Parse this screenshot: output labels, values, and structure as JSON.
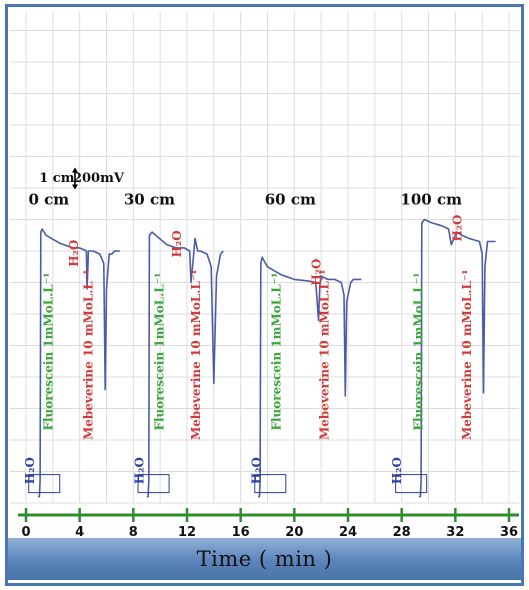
{
  "chart_data": {
    "type": "line",
    "title": "",
    "xlabel": "Time ( min )",
    "ylabel": "",
    "xlim": [
      0,
      36
    ],
    "x_ticks": [
      0,
      4,
      8,
      12,
      16,
      20,
      24,
      28,
      32,
      36
    ],
    "scale_bar": {
      "length": "1 cm",
      "value": "200mV"
    },
    "grid": true,
    "colors": {
      "trace": "#4a5ba8",
      "fluorescein": "#3aa53a",
      "mebeverine": "#d23a3a",
      "water": "#2b3fa0",
      "axis": "#2e8b2e",
      "frame": "#4a76b3"
    },
    "series": [
      {
        "name": "0 cm",
        "x": [
          0.9,
          1.0,
          1.05,
          1.1,
          1.2,
          1.5,
          2.5,
          3.5,
          4.0,
          4.5,
          4.55,
          4.6,
          4.65,
          4.7,
          5.0,
          5.5,
          5.8,
          5.9,
          6.0,
          6.2,
          6.4,
          6.6,
          6.8,
          7.0
        ],
        "y": [
          0.2,
          0.2,
          0.7,
          8.6,
          8.7,
          8.5,
          8.25,
          8.1,
          8.1,
          8.0,
          6.8,
          7.3,
          8.0,
          8.0,
          8.0,
          7.9,
          7.6,
          3.6,
          6.8,
          7.9,
          7.9,
          8.0,
          8.0,
          8.0
        ]
      },
      {
        "name": "30 cm",
        "x": [
          9.0,
          9.1,
          9.15,
          9.2,
          9.4,
          9.8,
          10.5,
          11.2,
          11.8,
          12.2,
          12.3,
          12.5,
          12.6,
          12.8,
          13.0,
          13.5,
          13.8,
          14.0,
          14.2,
          14.5,
          14.7
        ],
        "y": [
          0.2,
          0.2,
          0.7,
          8.5,
          8.6,
          8.45,
          8.2,
          8.1,
          8.1,
          8.0,
          7.0,
          7.9,
          8.4,
          8.0,
          8.0,
          7.9,
          7.5,
          3.8,
          7.2,
          7.9,
          8.0
        ]
      },
      {
        "name": "60 cm",
        "x": [
          17.3,
          17.4,
          17.45,
          17.5,
          17.6,
          18.0,
          19.0,
          20.0,
          21.0,
          21.6,
          21.8,
          21.9,
          22.0,
          22.5,
          23.0,
          23.5,
          23.7,
          23.8,
          23.9,
          24.2,
          24.4,
          24.6,
          24.8,
          25.0
        ],
        "y": [
          0.2,
          0.2,
          0.7,
          7.6,
          7.8,
          7.5,
          7.25,
          7.1,
          7.05,
          7.0,
          5.8,
          6.9,
          7.2,
          7.1,
          7.1,
          7.0,
          6.6,
          3.4,
          6.4,
          7.0,
          7.1,
          7.1,
          7.1,
          7.1
        ]
      },
      {
        "name": "100 cm",
        "x": [
          29.3,
          29.4,
          29.45,
          29.5,
          29.7,
          30.2,
          31.0,
          31.5,
          31.7,
          31.9,
          32.1,
          32.5,
          33.0,
          33.8,
          34.0,
          34.1,
          34.2,
          34.4,
          34.8,
          35.0
        ],
        "y": [
          0.2,
          0.2,
          0.7,
          8.9,
          9.0,
          8.9,
          8.8,
          8.7,
          8.2,
          8.4,
          8.6,
          8.5,
          8.4,
          8.3,
          7.9,
          3.5,
          7.5,
          8.3,
          8.3,
          8.3
        ]
      }
    ],
    "annotations": [
      {
        "text": "1 cm",
        "x": 2.3,
        "y": 10.3
      },
      {
        "text": "200mV",
        "x": 5.4,
        "y": 10.3
      },
      {
        "text": "0 cm",
        "x": 1.7,
        "y": 9.6
      },
      {
        "text": "30 cm",
        "x": 9.2,
        "y": 9.6
      },
      {
        "text": "60 cm",
        "x": 19.7,
        "y": 9.6
      },
      {
        "text": "100 cm",
        "x": 30.2,
        "y": 9.6
      }
    ],
    "vertical_labels": [
      {
        "text": "H₂O",
        "x": 0.35,
        "y": 0.6,
        "role": "water"
      },
      {
        "text": "Fluorescein 1mMoL.L⁻¹",
        "x": 1.7,
        "y": 2.3,
        "role": "fluorescein"
      },
      {
        "text": "H₂O",
        "x": 3.6,
        "y": 7.5,
        "role": "mebeverine"
      },
      {
        "text": "Mebeverine 10 mMoL.L⁻¹",
        "x": 4.7,
        "y": 2.0,
        "role": "mebeverine"
      },
      {
        "text": "H₂O",
        "x": 8.5,
        "y": 0.6,
        "role": "water"
      },
      {
        "text": "Fluorescein 1mMoL.L⁻¹",
        "x": 10.0,
        "y": 2.3,
        "role": "fluorescein"
      },
      {
        "text": "H₂O",
        "x": 11.3,
        "y": 7.8,
        "role": "mebeverine"
      },
      {
        "text": "Mebeverine 10 mMoL.L⁻¹",
        "x": 12.7,
        "y": 2.0,
        "role": "mebeverine"
      },
      {
        "text": "H₂O",
        "x": 17.2,
        "y": 0.6,
        "role": "water"
      },
      {
        "text": "Fluorescein 1mMoL.L⁻¹",
        "x": 18.7,
        "y": 2.3,
        "role": "fluorescein"
      },
      {
        "text": "H₂O",
        "x": 21.7,
        "y": 6.9,
        "role": "mebeverine"
      },
      {
        "text": "Mebeverine 10 mMoL.L⁻¹",
        "x": 22.3,
        "y": 2.0,
        "role": "mebeverine"
      },
      {
        "text": "H₂O",
        "x": 27.7,
        "y": 0.6,
        "role": "water"
      },
      {
        "text": "Fluorescein 1mMoL.L⁻¹",
        "x": 29.3,
        "y": 2.3,
        "role": "fluorescein"
      },
      {
        "text": "H₂O",
        "x": 32.2,
        "y": 8.3,
        "role": "mebeverine"
      },
      {
        "text": "Mebeverine 10 mMoL.L⁻¹",
        "x": 32.9,
        "y": 2.0,
        "role": "mebeverine"
      }
    ]
  }
}
